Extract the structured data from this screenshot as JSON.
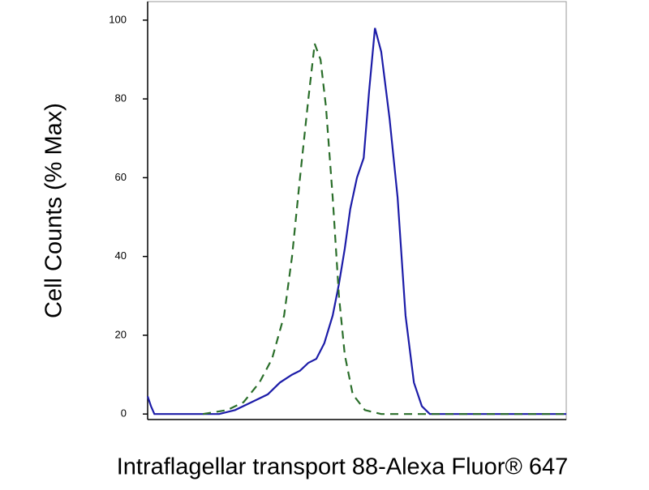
{
  "chart_data": {
    "type": "line",
    "ylabel": "Cell Counts (% Max)",
    "xlabel": "Intraflagellar transport 88-Alexa Fluor® 647",
    "xlim": [
      0,
      100
    ],
    "ylim": [
      -1.4,
      104.7
    ],
    "yticks": [
      0,
      20,
      40,
      60,
      80,
      100
    ],
    "series": [
      {
        "color": "#1c1ca8",
        "line_style": "solid",
        "x": [
          0,
          0.8,
          1.6,
          11.2,
          17.1,
          20.9,
          24.8,
          28.7,
          31.6,
          34.5,
          36.4,
          38.4,
          40.3,
          42.2,
          44.2,
          45.7,
          47.1,
          48.4,
          50,
          51.6,
          52.9,
          54.3,
          55.8,
          57.8,
          59.7,
          61.6,
          63.6,
          65.5,
          67.4,
          100
        ],
        "values": [
          4.5,
          2,
          0,
          0,
          0,
          1,
          3,
          5,
          8,
          10,
          11,
          13,
          14,
          18,
          25,
          33,
          42,
          52,
          60,
          65,
          82,
          98,
          92,
          75,
          55,
          25,
          8,
          2,
          0,
          0
        ]
      },
      {
        "color": "#2a6e2a",
        "line_style": "dashed",
        "x": [
          13.2,
          19,
          22.9,
          26.7,
          29.7,
          32.6,
          34.5,
          36.4,
          38.4,
          39.9,
          41.3,
          42.6,
          44.2,
          45.7,
          47.1,
          49,
          51.9,
          55.8,
          100
        ],
        "values": [
          0,
          1,
          3,
          8,
          14,
          25,
          40,
          60,
          80,
          94,
          90,
          78,
          55,
          30,
          15,
          5,
          1,
          0,
          0
        ]
      }
    ]
  }
}
